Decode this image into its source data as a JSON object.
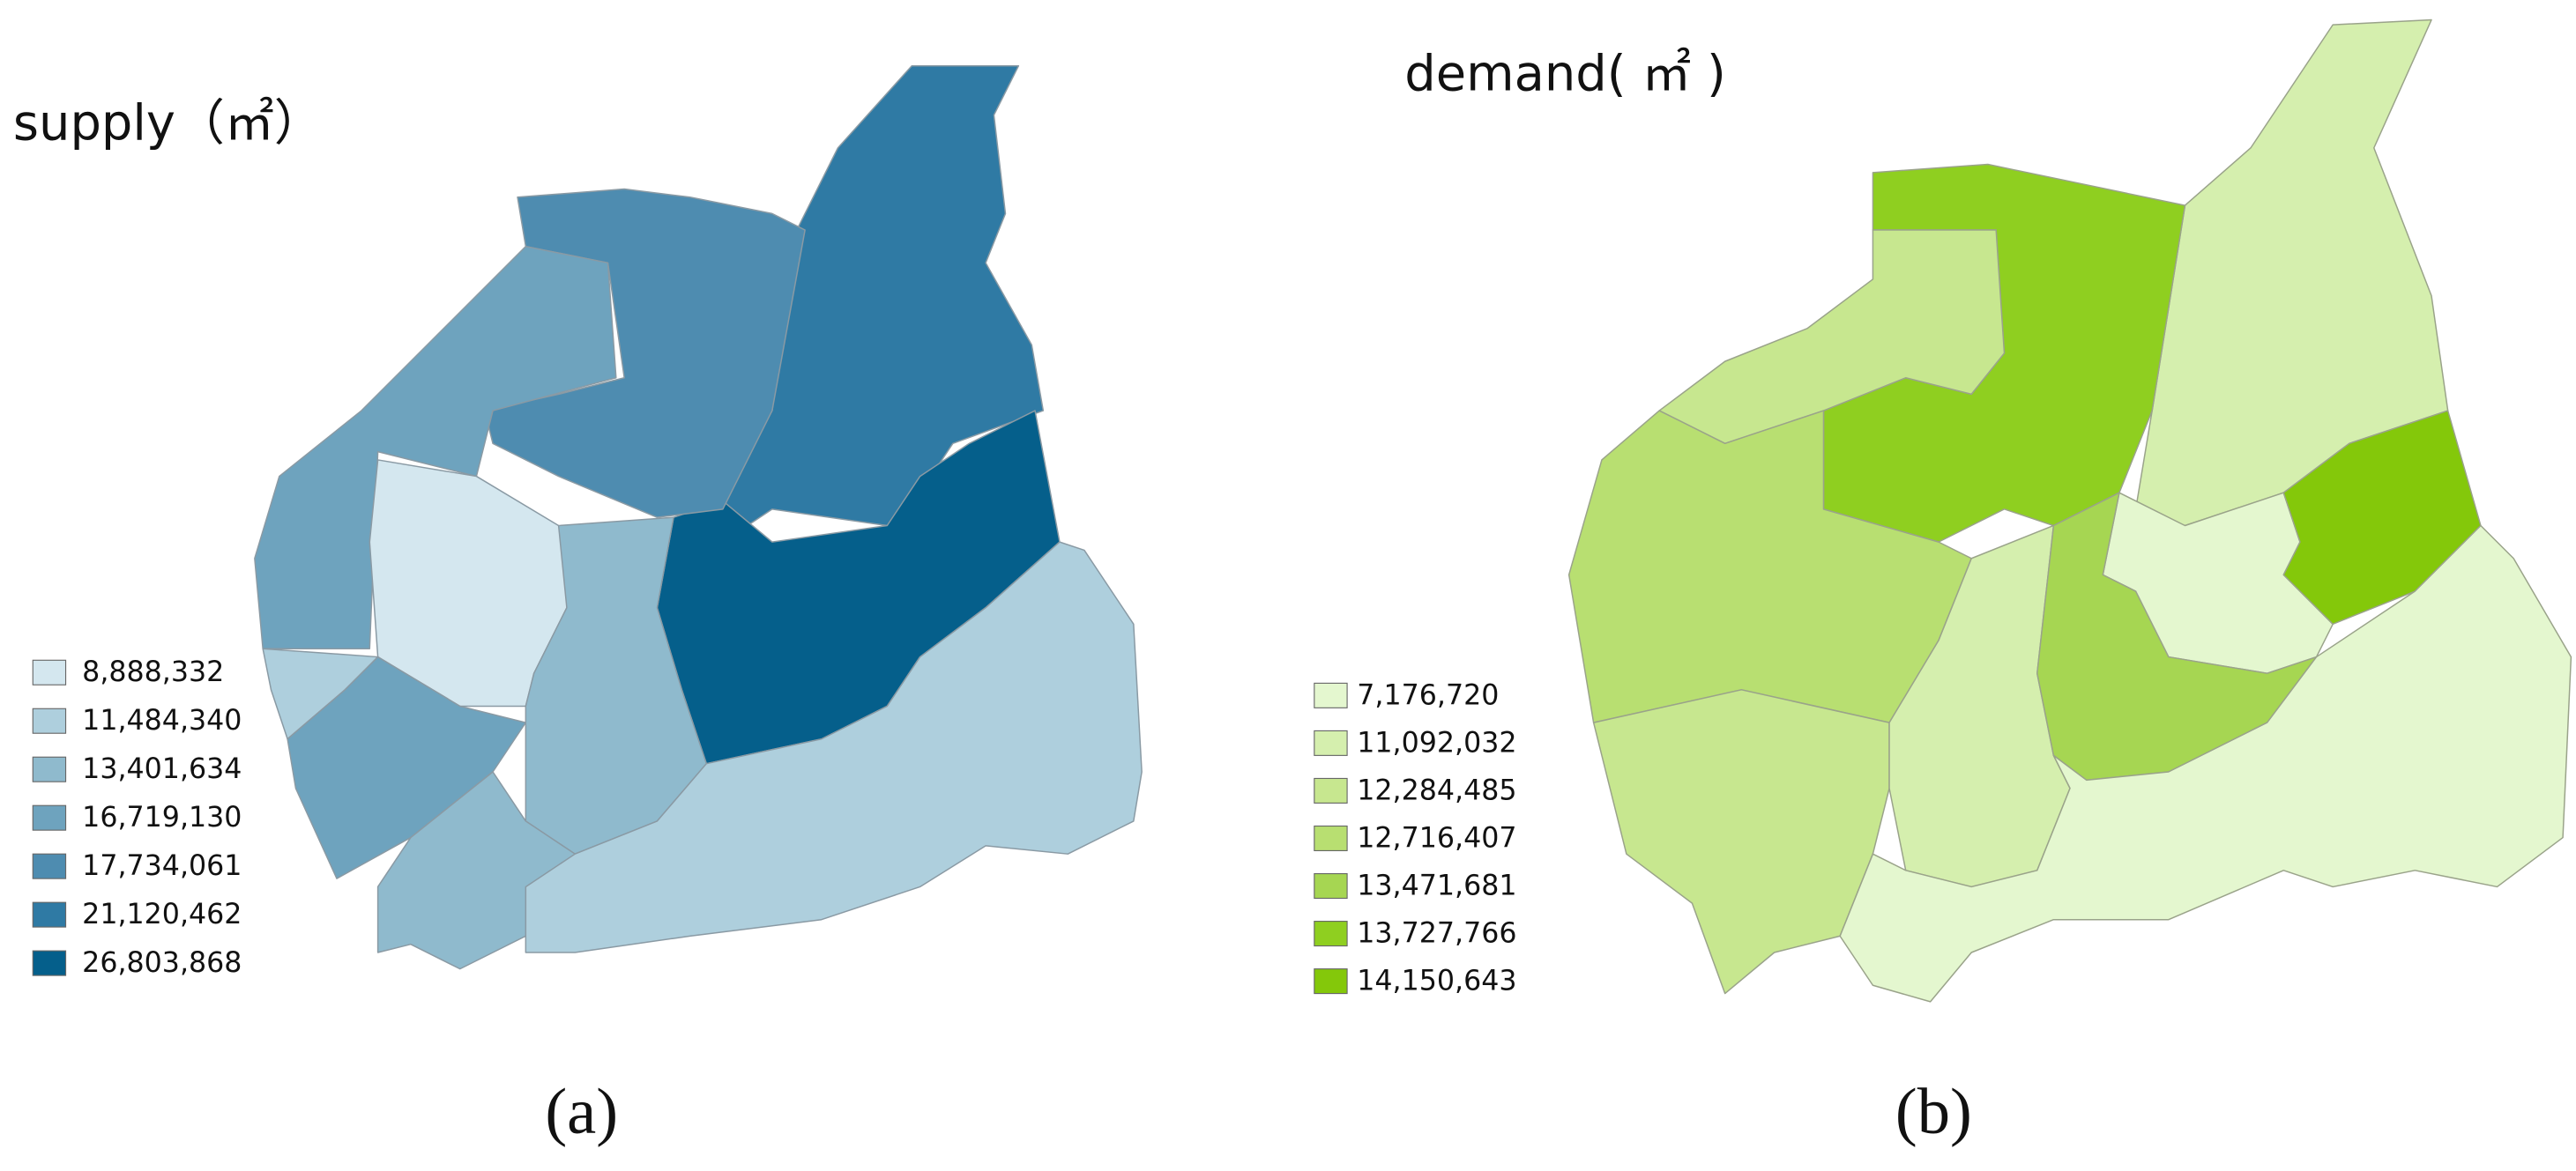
{
  "panels": [
    {
      "title": "supply（㎡）",
      "caption": "(a)",
      "legend": [
        {
          "label": "8,888,332",
          "color": "#d4e7ef"
        },
        {
          "label": "11,484,340",
          "color": "#aecfdd"
        },
        {
          "label": "13,401,634",
          "color": "#8fbacd"
        },
        {
          "label": "16,719,130",
          "color": "#6ea3be"
        },
        {
          "label": "17,734,061",
          "color": "#4e8cb0"
        },
        {
          "label": "21,120,462",
          "color": "#2f7aa4"
        },
        {
          "label": "26,803,868",
          "color": "#055f8b"
        }
      ]
    },
    {
      "title": "demand( ㎡ )",
      "caption": "(b)",
      "legend": [
        {
          "label": "7,176,720",
          "color": "#e4f7cf"
        },
        {
          "label": "11,092,032",
          "color": "#d5efae"
        },
        {
          "label": "12,284,485",
          "color": "#c7e78f"
        },
        {
          "label": "12,716,407",
          "color": "#b8df71"
        },
        {
          "label": "13,471,681",
          "color": "#a6d652"
        },
        {
          "label": "13,727,766",
          "color": "#8fcf20"
        },
        {
          "label": "14,150,643",
          "color": "#84c80a"
        }
      ]
    }
  ]
}
